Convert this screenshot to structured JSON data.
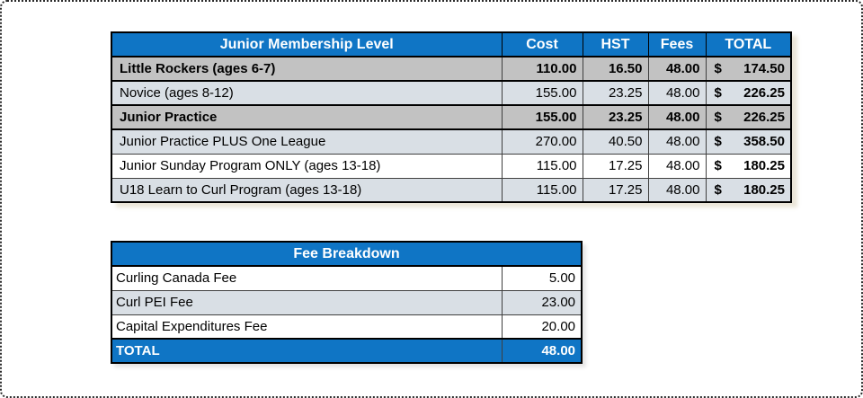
{
  "membership_table": {
    "title": "Junior Membership Level",
    "columns": [
      "Cost",
      "HST",
      "Fees",
      "TOTAL"
    ],
    "currency_symbol": "$",
    "rows": [
      {
        "label": "Little Rockers (ages 6-7)",
        "cost": "110.00",
        "hst": "16.50",
        "fees": "48.00",
        "total": "174.50"
      },
      {
        "label": "Novice (ages 8-12)",
        "cost": "155.00",
        "hst": "23.25",
        "fees": "48.00",
        "total": "226.25"
      },
      {
        "label": "Junior Practice",
        "cost": "155.00",
        "hst": "23.25",
        "fees": "48.00",
        "total": "226.25"
      },
      {
        "label": "Junior Practice PLUS One League",
        "cost": "270.00",
        "hst": "40.50",
        "fees": "48.00",
        "total": "358.50"
      },
      {
        "label": "Junior Sunday Program ONLY (ages 13-18)",
        "cost": "115.00",
        "hst": "17.25",
        "fees": "48.00",
        "total": "180.25"
      },
      {
        "label": "U18 Learn to Curl Program (ages 13-18)",
        "cost": "115.00",
        "hst": "17.25",
        "fees": "48.00",
        "total": "180.25"
      }
    ]
  },
  "fee_table": {
    "title": "Fee Breakdown",
    "rows": [
      {
        "label": "Curling Canada Fee",
        "value": "5.00"
      },
      {
        "label": "Curl PEI Fee",
        "value": "23.00"
      },
      {
        "label": "Capital Expenditures Fee",
        "value": "20.00"
      }
    ],
    "total_label": "TOTAL",
    "total_value": "48.00"
  },
  "colors": {
    "header_blue": "#0f75c5",
    "row_gray": "#c2c2c2",
    "row_light_blue": "#d9dfe5",
    "row_white": "#ffffff"
  }
}
